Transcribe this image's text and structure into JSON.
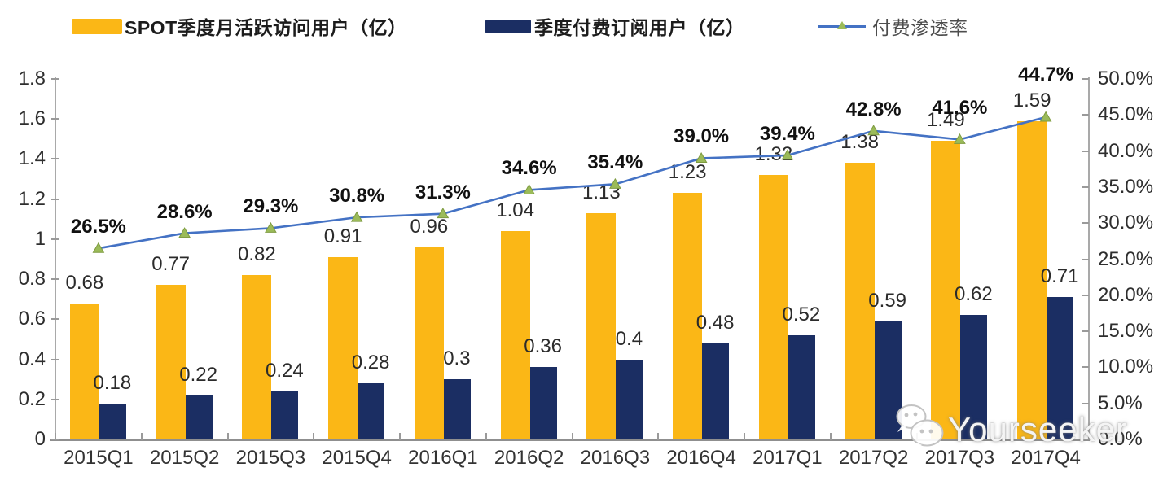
{
  "legend": {
    "items": [
      {
        "label": "SPOT季度月活跃访问用户（亿）",
        "swatch": "bar",
        "color": "#FBB716"
      },
      {
        "label": "季度付费订阅用户（亿）",
        "swatch": "bar",
        "color": "#1B2E63"
      },
      {
        "label": "付费渗透率",
        "swatch": "line-triangle-marker",
        "color": "#4472C4",
        "marker_color": "#9BBB59"
      }
    ]
  },
  "chart_data": {
    "type": "bar",
    "subtype": "grouped-bar-with-line-combo",
    "categories": [
      "2015Q1",
      "2015Q2",
      "2015Q3",
      "2015Q4",
      "2016Q1",
      "2016Q2",
      "2016Q3",
      "2016Q4",
      "2017Q1",
      "2017Q2",
      "2017Q3",
      "2017Q4"
    ],
    "series": [
      {
        "name": "SPOT季度月活跃访问用户（亿）",
        "type": "bar",
        "axis": "left",
        "color": "#FBB716",
        "values": [
          0.68,
          0.77,
          0.82,
          0.91,
          0.96,
          1.04,
          1.13,
          1.23,
          1.32,
          1.38,
          1.49,
          1.59
        ],
        "labels": [
          "0.68",
          "0.77",
          "0.82",
          "0.91",
          "0.96",
          "1.04",
          "1.13",
          "1.23",
          "1.32",
          "1.38",
          "1.49",
          "1.59"
        ]
      },
      {
        "name": "季度付费订阅用户（亿）",
        "type": "bar",
        "axis": "left",
        "color": "#1B2E63",
        "values": [
          0.18,
          0.22,
          0.24,
          0.28,
          0.3,
          0.36,
          0.4,
          0.48,
          0.52,
          0.59,
          0.62,
          0.71
        ],
        "labels": [
          "0.18",
          "0.22",
          "0.24",
          "0.28",
          "0.3",
          "0.36",
          "0.4",
          "0.48",
          "0.52",
          "0.59",
          "0.62",
          "0.71"
        ]
      },
      {
        "name": "付费渗透率",
        "type": "line",
        "axis": "right",
        "color": "#4472C4",
        "marker": "triangle",
        "marker_color": "#9BBB59",
        "values": [
          26.5,
          28.6,
          29.3,
          30.8,
          31.3,
          34.6,
          35.4,
          39.0,
          39.4,
          42.8,
          41.6,
          44.7
        ],
        "labels": [
          "26.5%",
          "28.6%",
          "29.3%",
          "30.8%",
          "31.3%",
          "34.6%",
          "35.4%",
          "39.0%",
          "39.4%",
          "42.8%",
          "41.6%",
          "44.7%"
        ]
      }
    ],
    "left_axis": {
      "min": 0,
      "max": 1.8,
      "step": 0.2,
      "ticks": [
        "1.8",
        "1.6",
        "1.4",
        "1.2",
        "1",
        "0.8",
        "0.6",
        "0.4",
        "0.2",
        "0"
      ]
    },
    "right_axis": {
      "min": 0,
      "max": 50,
      "step": 5,
      "ticks": [
        "50.0%",
        "45.0%",
        "40.0%",
        "35.0%",
        "30.0%",
        "25.0%",
        "20.0%",
        "15.0%",
        "10.0%",
        "5.0%",
        "0.0%"
      ]
    },
    "grid": false,
    "legend_position": "top"
  },
  "watermark": {
    "text": "Yourseeker",
    "icon": "wechat-icon"
  }
}
